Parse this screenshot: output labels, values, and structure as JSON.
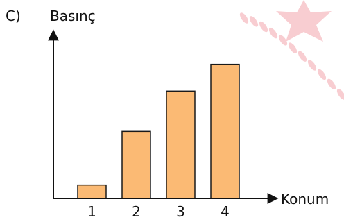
{
  "option_label": "C)",
  "chart_data": {
    "type": "bar",
    "ylabel": "Basınç",
    "xlabel": "Konum",
    "categories": [
      "1",
      "2",
      "3",
      "4"
    ],
    "values": [
      1,
      5,
      8,
      10
    ],
    "ylim": [
      0,
      12
    ],
    "grid": false,
    "legend": "none",
    "bar_color": "#FBBA74",
    "bar_stroke": "#1a1a1a",
    "watermark_color": "#F3A6AC"
  }
}
